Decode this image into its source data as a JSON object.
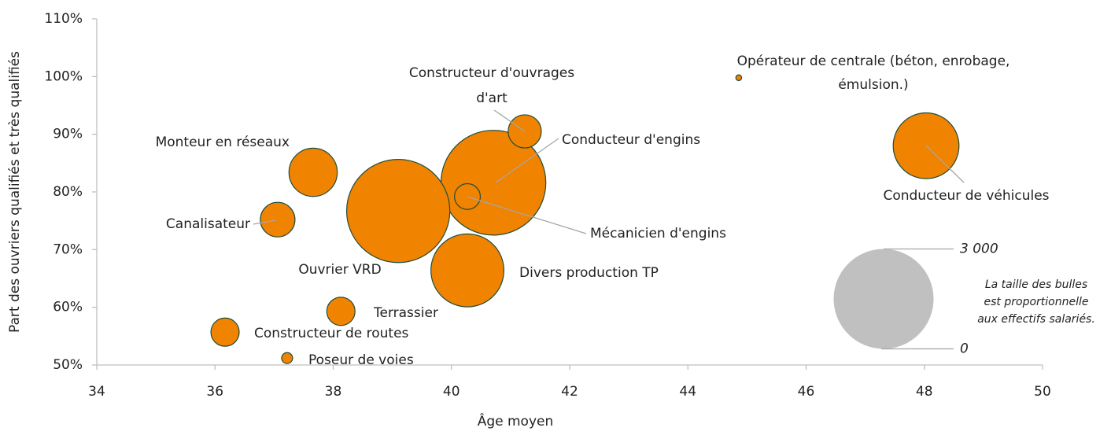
{
  "chart_data": {
    "type": "bubble",
    "xlabel": "Âge moyen",
    "ylabel": "Part des ouvriers qualifiés et très qualifiés",
    "labels": [
      [
        "Opérateur de centrale (béton, enrobage,",
        "émulsion.)"
      ],
      [
        "Conducteur de véhicules"
      ],
      [
        "Constructeur d'ouvrages",
        "d'art"
      ],
      [
        "Conducteur d'engins"
      ],
      [
        "Mécanicien d'engins"
      ],
      [
        "Monteur en réseaux"
      ],
      [
        "Ouvrier VRD"
      ],
      [
        "Canalisateur"
      ],
      [
        "Divers production TP"
      ],
      [
        "Terrassier"
      ],
      [
        "Constructeur de routes"
      ],
      [
        "Poseur de voies"
      ]
    ],
    "x": [
      44.86,
      48.03,
      41.24,
      40.71,
      40.27,
      37.66,
      39.1,
      37.06,
      40.27,
      38.13,
      36.17,
      37.22
    ],
    "values": [
      99.8,
      88,
      90.5,
      81.6,
      79.2,
      83.4,
      76.7,
      75.2,
      66.4,
      59.3,
      55.7,
      51.2
    ],
    "sizes": [
      10,
      1300,
      330,
      3300,
      200,
      700,
      3200,
      360,
      1600,
      240,
      240,
      36
    ],
    "color": "#f08300",
    "edge_color": "#1e4d3b",
    "xlim": [
      34,
      50
    ],
    "xticks": [
      34,
      36,
      38,
      40,
      42,
      44,
      46,
      48,
      50
    ],
    "ylim": [
      50,
      110
    ],
    "yticks": [
      {
        "value": 50,
        "label": "50%"
      },
      {
        "value": 60,
        "label": "60%"
      },
      {
        "value": 70,
        "label": "70%"
      },
      {
        "value": 80,
        "label": "80%"
      },
      {
        "value": 90,
        "label": "90%"
      },
      {
        "value": 100,
        "label": "100%"
      },
      {
        "value": 110,
        "label": "110%"
      }
    ],
    "size_legend": {
      "values": [
        {
          "value": 3000,
          "label": "3 000"
        },
        {
          "value": 0,
          "label": "0"
        }
      ],
      "note": [
        "La taille des bulles",
        "est proportionnelle",
        "aux effectifs salariés."
      ],
      "color": "#c0c0c0"
    },
    "grid": false
  }
}
